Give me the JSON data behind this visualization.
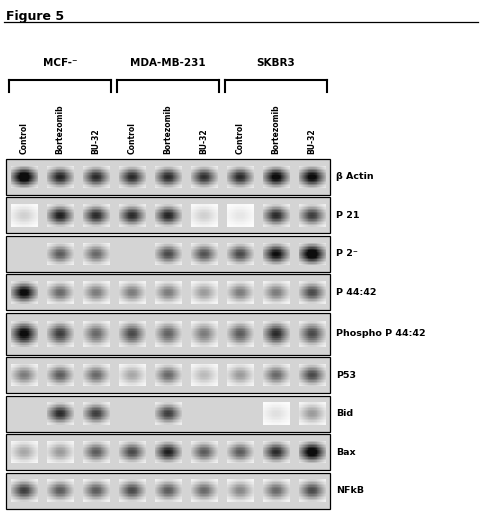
{
  "title": "Figure 5",
  "cell_lines": [
    "MCF-⁻",
    "MDA-MB-231",
    "SKBR3"
  ],
  "lane_labels": [
    "Control",
    "Bortezomib",
    "BU-32",
    "Control",
    "Bortezomib",
    "BU-32",
    "Control",
    "Bortezomib",
    "BU-32"
  ],
  "protein_labels": [
    "β Actin",
    "P 21",
    "P 2⁻",
    "P 44:42",
    "Phospho P 44:42",
    "P53",
    "Bid",
    "Bax",
    "NFkB"
  ],
  "figure_width": 4.82,
  "figure_height": 5.14,
  "bg_color": "#ffffff",
  "gel_bg": "#d8d8d8",
  "band_patterns": {
    "b_actin": [
      0.92,
      0.7,
      0.68,
      0.68,
      0.68,
      0.66,
      0.68,
      0.82,
      0.82
    ],
    "p21": [
      0.15,
      0.72,
      0.68,
      0.68,
      0.7,
      0.15,
      0.08,
      0.68,
      0.62
    ],
    "p27": [
      0.06,
      0.52,
      0.48,
      0.06,
      0.58,
      0.55,
      0.58,
      0.78,
      0.92
    ],
    "p4442": [
      0.82,
      0.48,
      0.42,
      0.42,
      0.42,
      0.32,
      0.42,
      0.42,
      0.58
    ],
    "phospho": [
      0.82,
      0.62,
      0.48,
      0.58,
      0.5,
      0.42,
      0.52,
      0.68,
      0.58
    ],
    "p53": [
      0.42,
      0.52,
      0.48,
      0.28,
      0.48,
      0.22,
      0.32,
      0.48,
      0.58
    ],
    "bid": [
      0.05,
      0.68,
      0.62,
      0.05,
      0.62,
      0.05,
      0.05,
      0.1,
      0.32
    ],
    "bax": [
      0.28,
      0.32,
      0.52,
      0.58,
      0.72,
      0.52,
      0.52,
      0.68,
      0.88
    ],
    "nfkb": [
      0.62,
      0.52,
      0.52,
      0.58,
      0.52,
      0.48,
      0.38,
      0.48,
      0.58
    ]
  },
  "row_heights": [
    1.0,
    1.0,
    1.0,
    1.0,
    1.15,
    1.0,
    1.0,
    1.0,
    1.0
  ],
  "protein_keys": [
    "b_actin",
    "p21",
    "p27",
    "p4442",
    "phospho",
    "p53",
    "bid",
    "bax",
    "nfkb"
  ],
  "group_info": [
    {
      "label": "MCF-⁻",
      "start": 0,
      "end": 2
    },
    {
      "label": "MDA-MB-231",
      "start": 3,
      "end": 5
    },
    {
      "label": "SKBR3",
      "start": 6,
      "end": 8
    }
  ]
}
